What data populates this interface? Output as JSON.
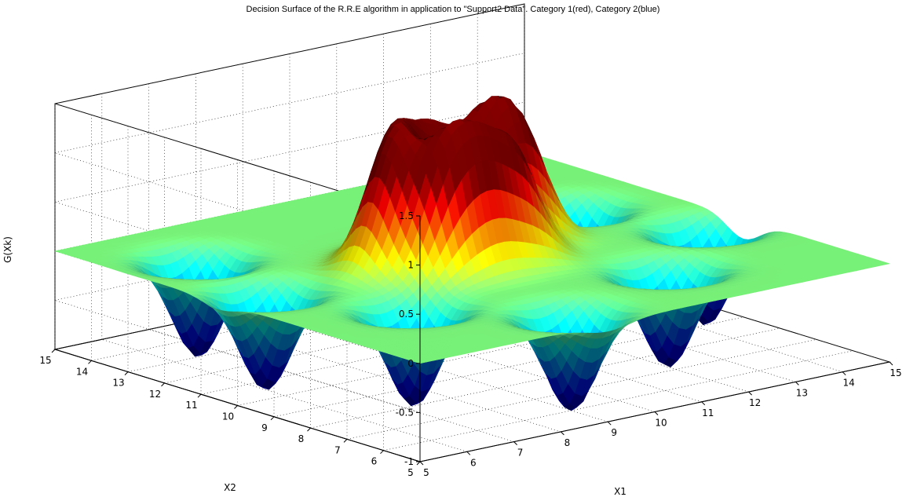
{
  "chart_data": {
    "type": "surface",
    "title": "Decision Surface of the R.R.E algorithm in application to \"Support2 Data\".  Category 1(red), Category 2(blue)",
    "xlabel": "X1",
    "ylabel": "X2",
    "zlabel": "G(Xk)",
    "xlim": [
      5,
      15
    ],
    "ylim": [
      5,
      15
    ],
    "zlim": [
      -1,
      1.5
    ],
    "x_ticks": [
      5,
      6,
      7,
      8,
      9,
      10,
      11,
      12,
      13,
      14,
      15
    ],
    "y_ticks": [
      5,
      6,
      7,
      8,
      9,
      10,
      11,
      12,
      13,
      14,
      15
    ],
    "z_ticks": [
      -1,
      -0.5,
      0,
      0.5,
      1,
      1.5
    ],
    "z_tick_labels": [
      "-1",
      "-0.5",
      "0",
      "0.5",
      "1",
      "1.5"
    ],
    "grid": true,
    "series": [
      {
        "name": "Category 1(red)",
        "color": "#c40000",
        "peaks": [
          {
            "x": 8.4,
            "y": 10.2,
            "z": 1.0
          },
          {
            "x": 9.0,
            "y": 10.7,
            "z": 1.0
          },
          {
            "x": 9.8,
            "y": 10.9,
            "z": 1.0
          },
          {
            "x": 10.7,
            "y": 10.7,
            "z": 1.0
          },
          {
            "x": 11.3,
            "y": 10.3,
            "z": 1.0
          },
          {
            "x": 8.9,
            "y": 9.4,
            "z": 1.0
          },
          {
            "x": 9.6,
            "y": 9.3,
            "z": 1.0
          },
          {
            "x": 10.4,
            "y": 9.4,
            "z": 1.0
          }
        ]
      },
      {
        "name": "Category 2(blue)",
        "color": "#00007a",
        "peaks": [
          {
            "x": 6.5,
            "y": 13.0,
            "z": -1.0
          },
          {
            "x": 6.0,
            "y": 10.5,
            "z": -1.0
          },
          {
            "x": 7.2,
            "y": 8.0,
            "z": -1.0
          },
          {
            "x": 9.0,
            "y": 6.0,
            "z": -1.0
          },
          {
            "x": 12.0,
            "y": 7.2,
            "z": -1.0
          },
          {
            "x": 14.2,
            "y": 9.0,
            "z": -1.0
          },
          {
            "x": 13.3,
            "y": 11.5,
            "z": -1.0
          },
          {
            "x": 12.5,
            "y": 13.5,
            "z": -0.8
          }
        ]
      }
    ],
    "surface_sigma": 0.45
  }
}
